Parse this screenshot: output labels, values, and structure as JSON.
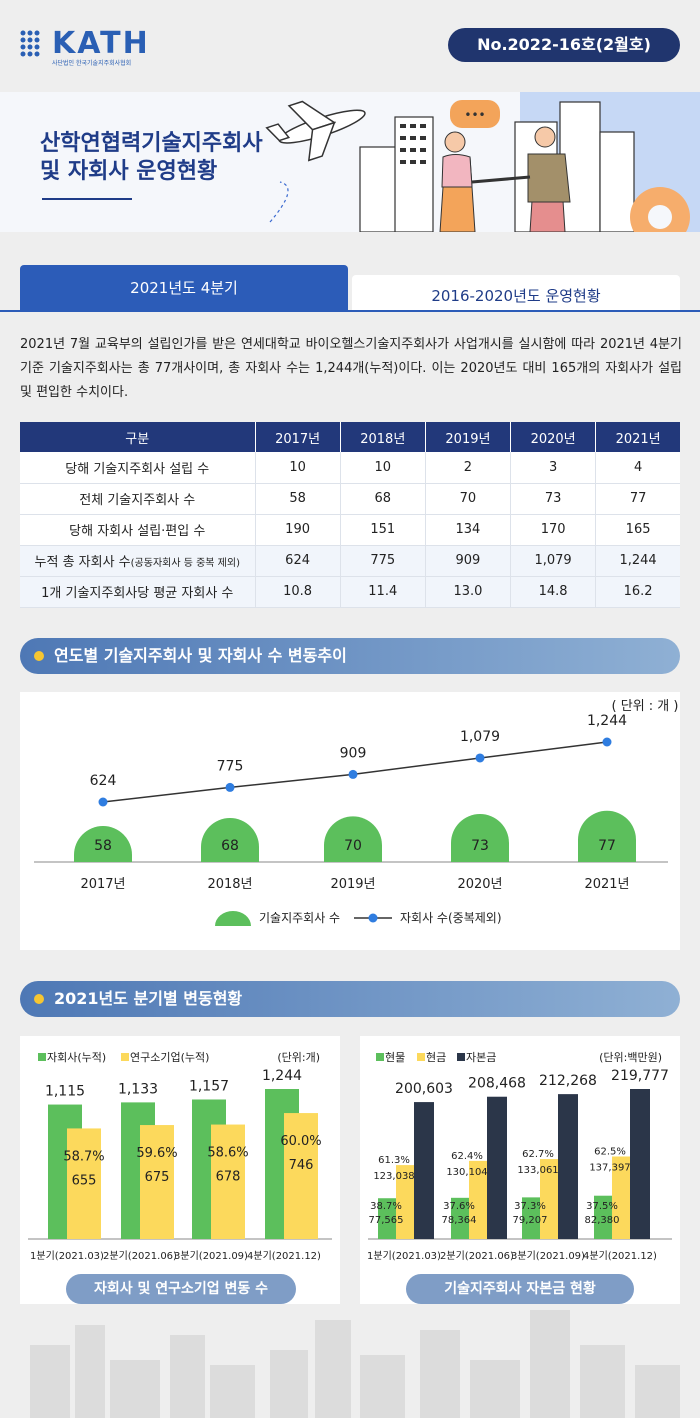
{
  "header": {
    "logo": "KATH",
    "logo_sub": "사단법인 한국기술지주회사협회",
    "issue": "No.2022-16호(2월호)"
  },
  "banner": {
    "title_line1": "산학연협력기술지주회사",
    "title_line2": "및 자회사 운영현황"
  },
  "tabs": [
    {
      "label": "2021년도 4분기",
      "active": true
    },
    {
      "label": "2016-2020년도 운영현황",
      "active": false
    }
  ],
  "intro": "2021년 7월 교육부의 설립인가를 받은 연세대학교 바이오헬스기술지주회사가 사업개시를 실시함에 따라 2021년 4분기 기준 기술지주회사는 총 77개사이며, 총 자회사 수는 1,244개(누적)이다. 이는 2020년도 대비 165개의 자회사가 설립 및 편입한 수치이다.",
  "table": {
    "header": [
      "구분",
      "2017년",
      "2018년",
      "2019년",
      "2020년",
      "2021년"
    ],
    "rows": [
      {
        "label": "당해 기술지주회사 설립 수",
        "note": "",
        "values": [
          "10",
          "10",
          "2",
          "3",
          "4"
        ]
      },
      {
        "label": "전체 기술지주회사 수",
        "note": "",
        "values": [
          "58",
          "68",
          "70",
          "73",
          "77"
        ]
      },
      {
        "label": "당해 자회사 설립·편입 수",
        "note": "",
        "values": [
          "190",
          "151",
          "134",
          "170",
          "165"
        ]
      },
      {
        "label": "누적 총 자회사 수",
        "note": "(공동자회사 등 중복 제외)",
        "values": [
          "624",
          "775",
          "909",
          "1,079",
          "1,244"
        ]
      },
      {
        "label": "1개 기술지주회사당 평균 자회사 수",
        "note": "",
        "values": [
          "10.8",
          "11.4",
          "13.0",
          "14.8",
          "16.2"
        ]
      }
    ]
  },
  "sections": {
    "trend": "연도별 기술지주회사 및 자회사 수 변동추이",
    "quarterly": "2021년도 분기별 변동현황"
  },
  "chart_data": [
    {
      "type": "bar",
      "unit": "( 단위 : 개 )",
      "categories": [
        "2017년",
        "2018년",
        "2019년",
        "2020년",
        "2021년"
      ],
      "series": [
        {
          "name": "기술지주회사 수",
          "type": "bar",
          "values": [
            58,
            68,
            70,
            73,
            77
          ],
          "labels": [
            "58",
            "68",
            "70",
            "73",
            "77"
          ],
          "color": "#5cbf5c"
        },
        {
          "name": "자회사 수(중복제외)",
          "type": "line",
          "values": [
            624,
            775,
            909,
            1079,
            1244
          ],
          "labels": [
            "624",
            "775",
            "909",
            "1,079",
            "1,244"
          ],
          "color": "#2f7de0"
        }
      ]
    },
    {
      "type": "bar",
      "unit": "(단위:개)",
      "caption": "자회사 및 연구소기업 변동 수",
      "categories": [
        "1분기(2021.03)",
        "2분기(2021.06)",
        "3분기(2021.09)",
        "4분기(2021.12)"
      ],
      "series": [
        {
          "name": "자회사(누적)",
          "values": [
            1115,
            1133,
            1157,
            1244
          ],
          "labels": [
            "1,115",
            "1,133",
            "1,157",
            "1,244"
          ],
          "color": "#5cbf5c"
        },
        {
          "name": "연구소기업(누적)",
          "values": [
            655,
            675,
            678,
            746
          ],
          "labels": [
            "655",
            "675",
            "678",
            "746"
          ],
          "percents": [
            "58.7%",
            "59.6%",
            "58.6%",
            "60.0%"
          ],
          "color": "#fcd95c"
        }
      ],
      "ylim": [
        0,
        1300
      ]
    },
    {
      "type": "bar",
      "unit": "(단위:백만원)",
      "caption": "기술지주회사 자본금 현황",
      "categories": [
        "1분기(2021.03)",
        "2분기(2021.06)",
        "3분기(2021.09)",
        "4분기(2021.12)"
      ],
      "series": [
        {
          "name": "현물",
          "values": [
            77565,
            78364,
            79207,
            82380
          ],
          "labels": [
            "77,565",
            "78,364",
            "79,207",
            "82,380"
          ],
          "percents": [
            "38.7%",
            "37.6%",
            "37.3%",
            "37.5%"
          ],
          "color": "#5cbf5c"
        },
        {
          "name": "현금",
          "values": [
            123038,
            130104,
            133061,
            137397
          ],
          "labels": [
            "123,038",
            "130,104",
            "133,061",
            "137,397"
          ],
          "percents": [
            "61.3%",
            "62.4%",
            "62.7%",
            "62.5%"
          ],
          "color": "#fcd95c"
        },
        {
          "name": "자본금",
          "values": [
            200603,
            208468,
            212268,
            219777
          ],
          "labels": [
            "200,603",
            "208,468",
            "212,268",
            "219,777"
          ],
          "color": "#2b3649"
        }
      ],
      "ylim": [
        0,
        230000
      ]
    }
  ]
}
